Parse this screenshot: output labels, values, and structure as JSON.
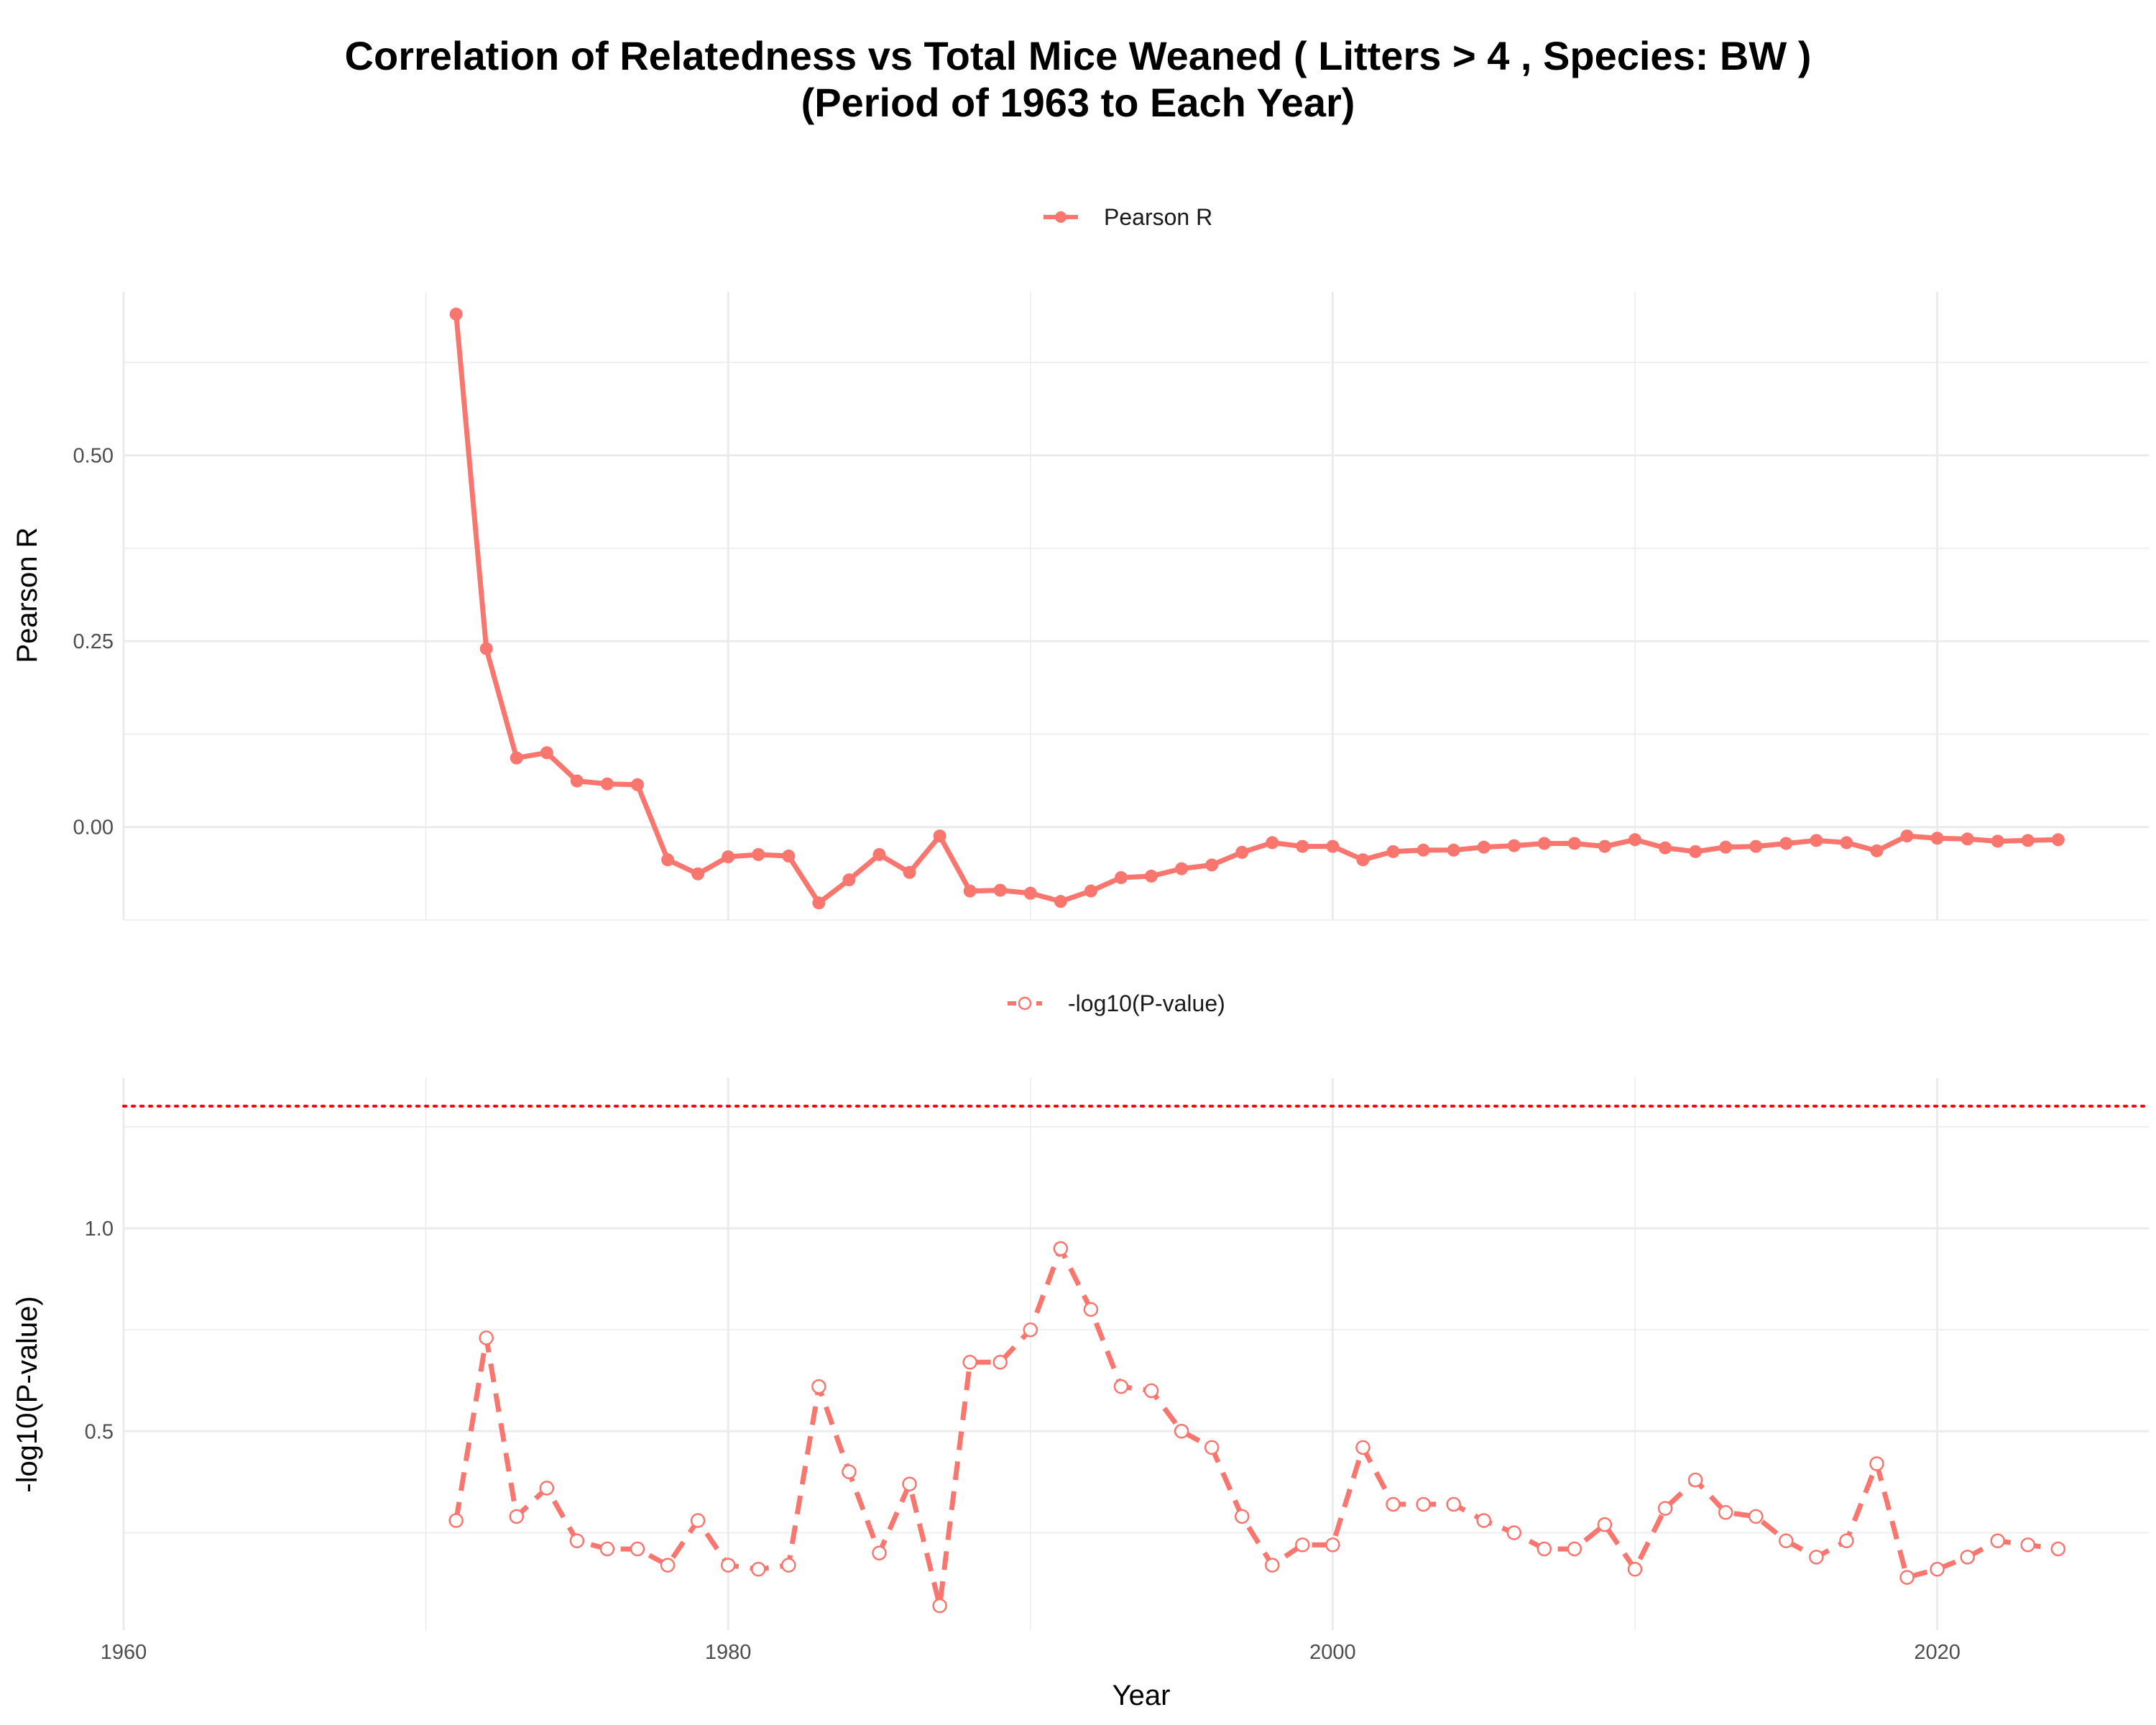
{
  "chart_data": {
    "title_line1": "Correlation of Relatedness vs Total Mice Weaned ( Litters > 4 , Species: BW )",
    "title_line2": "(Period of 1963 to Each Year)",
    "xlabel": "Year",
    "xlim": [
      1960,
      2027
    ],
    "x_ticks": [
      1960,
      1980,
      2000,
      2020
    ],
    "x_tick_labels": [
      "1960",
      "1980",
      "2000",
      "2020"
    ],
    "grid": true,
    "colors": {
      "series": "#F8766D",
      "threshold": "#FF0000",
      "grid": "#EBEBEB"
    },
    "panels": [
      {
        "type": "line",
        "legend": "Pearson R",
        "legend_position": "top",
        "ylabel": "Pearson R",
        "ylim": [
          -0.125,
          0.72
        ],
        "y_ticks": [
          0,
          0.25,
          0.5
        ],
        "y_tick_labels": [
          "0.00",
          "0.25",
          "0.50"
        ],
        "line_style": "solid",
        "marker": "filled-circle",
        "x": [
          1971,
          1972,
          1973,
          1974,
          1975,
          1976,
          1977,
          1978,
          1979,
          1980,
          1981,
          1982,
          1983,
          1984,
          1985,
          1986,
          1987,
          1988,
          1989,
          1990,
          1991,
          1992,
          1993,
          1994,
          1995,
          1996,
          1997,
          1998,
          1999,
          2000,
          2001,
          2002,
          2003,
          2004,
          2005,
          2006,
          2007,
          2008,
          2009,
          2010,
          2011,
          2012,
          2013,
          2014,
          2015,
          2016,
          2017,
          2018,
          2019,
          2020,
          2021,
          2022,
          2023,
          2024
        ],
        "values": [
          0.69,
          0.24,
          0.093,
          0.1,
          0.062,
          0.058,
          0.057,
          -0.044,
          -0.063,
          -0.04,
          -0.037,
          -0.039,
          -0.102,
          -0.071,
          -0.037,
          -0.061,
          -0.012,
          -0.086,
          -0.085,
          -0.089,
          -0.1,
          -0.086,
          -0.068,
          -0.066,
          -0.056,
          -0.051,
          -0.034,
          -0.021,
          -0.026,
          -0.026,
          -0.044,
          -0.033,
          -0.031,
          -0.031,
          -0.027,
          -0.025,
          -0.022,
          -0.022,
          -0.026,
          -0.017,
          -0.028,
          -0.033,
          -0.027,
          -0.026,
          -0.022,
          -0.018,
          -0.021,
          -0.032,
          -0.012,
          -0.015,
          -0.016,
          -0.019,
          -0.018,
          -0.017
        ]
      },
      {
        "type": "line",
        "legend": "-log10(P-value)",
        "legend_position": "top",
        "ylabel": "-log10(P-value)",
        "ylim": [
          0.01,
          1.37
        ],
        "y_ticks": [
          0.5,
          1.0
        ],
        "y_tick_labels": [
          "0.5",
          "1.0"
        ],
        "line_style": "dashed",
        "marker": "open-circle",
        "threshold": 1.301,
        "x": [
          1971,
          1972,
          1973,
          1974,
          1975,
          1976,
          1977,
          1978,
          1979,
          1980,
          1981,
          1982,
          1983,
          1984,
          1985,
          1986,
          1987,
          1988,
          1989,
          1990,
          1991,
          1992,
          1993,
          1994,
          1995,
          1996,
          1997,
          1998,
          1999,
          2000,
          2001,
          2002,
          2003,
          2004,
          2005,
          2006,
          2007,
          2008,
          2009,
          2010,
          2011,
          2012,
          2013,
          2014,
          2015,
          2016,
          2017,
          2018,
          2019,
          2020,
          2021,
          2022,
          2023,
          2024
        ],
        "values": [
          0.28,
          0.73,
          0.29,
          0.36,
          0.23,
          0.21,
          0.21,
          0.17,
          0.28,
          0.17,
          0.16,
          0.17,
          0.61,
          0.4,
          0.2,
          0.37,
          0.07,
          0.67,
          0.67,
          0.75,
          0.95,
          0.8,
          0.61,
          0.6,
          0.5,
          0.46,
          0.29,
          0.17,
          0.22,
          0.22,
          0.46,
          0.32,
          0.32,
          0.32,
          0.28,
          0.25,
          0.21,
          0.21,
          0.27,
          0.16,
          0.31,
          0.38,
          0.3,
          0.29,
          0.23,
          0.19,
          0.23,
          0.42,
          0.14,
          0.16,
          0.19,
          0.23,
          0.22,
          0.21
        ]
      }
    ]
  }
}
